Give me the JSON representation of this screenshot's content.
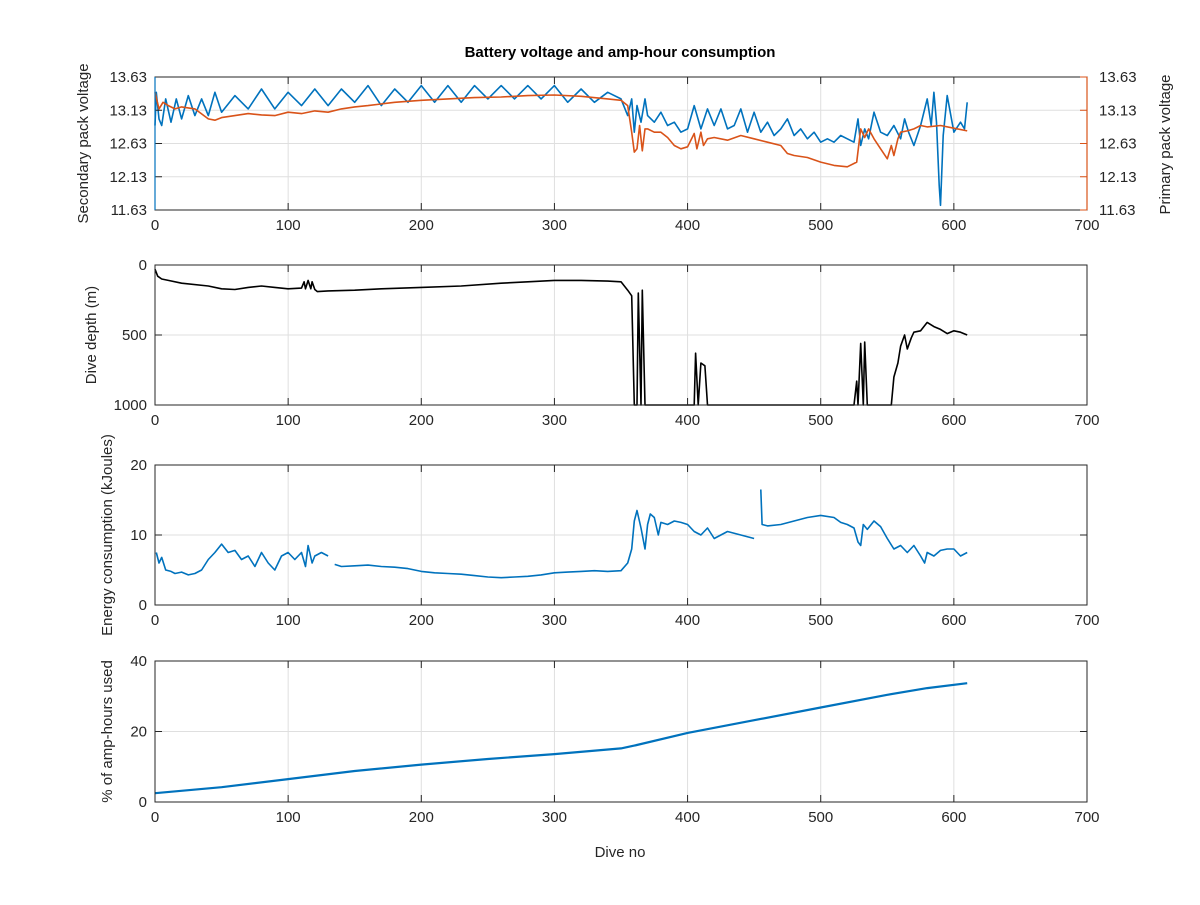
{
  "figure": {
    "title": "Battery voltage and amp-hour consumption",
    "xlabel": "Dive no"
  },
  "colors": {
    "blue": "#0072bd",
    "orange": "#d95319",
    "black": "#000000",
    "axis": "#262626"
  },
  "chart_data": [
    {
      "type": "line",
      "xlim": [
        0,
        700
      ],
      "x_ticks": [
        0,
        100,
        200,
        300,
        400,
        500,
        600,
        700
      ],
      "x_tick_labels": [
        "0",
        "100",
        "200",
        "300",
        "400",
        "500",
        "600",
        "700"
      ],
      "ylim": [
        11.63,
        13.63
      ],
      "y_ticks": [
        11.63,
        12.13,
        12.63,
        13.13,
        13.63
      ],
      "y_tick_labels": [
        "11.63",
        "12.13",
        "12.63",
        "13.13",
        "13.63"
      ],
      "ylabel": "Secondary pack voltage",
      "y2lim": [
        11.63,
        13.63
      ],
      "y2_ticks": [
        11.63,
        12.13,
        12.63,
        13.13,
        13.63
      ],
      "y2_tick_labels": [
        "11.63",
        "12.13",
        "12.63",
        "13.13",
        "13.63"
      ],
      "y2label": "Primary pack voltage",
      "grid": true,
      "series": [
        {
          "color": "blue",
          "axis": "left",
          "x": [
            0,
            1,
            3,
            5,
            8,
            12,
            16,
            20,
            25,
            30,
            35,
            40,
            45,
            50,
            60,
            70,
            80,
            90,
            100,
            110,
            120,
            130,
            140,
            150,
            160,
            170,
            180,
            190,
            200,
            210,
            220,
            230,
            240,
            250,
            260,
            270,
            280,
            290,
            300,
            310,
            320,
            330,
            340,
            350,
            355,
            358,
            360,
            362,
            365,
            368,
            370,
            375,
            380,
            385,
            390,
            395,
            400,
            405,
            410,
            415,
            420,
            425,
            430,
            435,
            440,
            445,
            450,
            455,
            460,
            465,
            470,
            475,
            480,
            485,
            490,
            495,
            500,
            505,
            510,
            515,
            520,
            525,
            528,
            530,
            533,
            536,
            540,
            545,
            550,
            555,
            560,
            563,
            566,
            570,
            575,
            580,
            583,
            585,
            587,
            589,
            590,
            592,
            595,
            600,
            605,
            608,
            610
          ],
          "y": [
            12.9,
            13.4,
            13.0,
            12.9,
            13.3,
            12.95,
            13.3,
            13.0,
            13.35,
            13.05,
            13.3,
            13.05,
            13.4,
            13.1,
            13.35,
            13.15,
            13.45,
            13.15,
            13.4,
            13.2,
            13.45,
            13.2,
            13.45,
            13.25,
            13.5,
            13.2,
            13.45,
            13.25,
            13.5,
            13.25,
            13.5,
            13.25,
            13.5,
            13.3,
            13.5,
            13.3,
            13.5,
            13.3,
            13.5,
            13.25,
            13.45,
            13.25,
            13.4,
            13.3,
            13.05,
            13.3,
            12.8,
            13.2,
            12.95,
            13.3,
            13.05,
            12.95,
            13.1,
            12.9,
            12.95,
            12.8,
            12.85,
            13.2,
            12.85,
            13.15,
            12.9,
            13.15,
            12.85,
            12.9,
            13.15,
            12.8,
            13.1,
            12.8,
            12.95,
            12.75,
            12.85,
            13.0,
            12.75,
            12.85,
            12.7,
            12.8,
            12.65,
            12.7,
            12.65,
            12.75,
            12.7,
            12.65,
            13.0,
            12.6,
            12.85,
            12.7,
            13.1,
            12.8,
            12.75,
            12.9,
            12.7,
            13.0,
            12.8,
            12.6,
            12.9,
            13.3,
            12.9,
            13.4,
            12.95,
            12.0,
            11.7,
            12.75,
            13.35,
            12.8,
            12.95,
            12.85,
            13.25
          ]
        },
        {
          "color": "orange",
          "axis": "right",
          "x": [
            0,
            3,
            6,
            10,
            15,
            20,
            30,
            40,
            45,
            50,
            60,
            70,
            80,
            90,
            100,
            110,
            120,
            130,
            140,
            150,
            160,
            180,
            200,
            220,
            240,
            260,
            280,
            300,
            320,
            340,
            350,
            355,
            358,
            360,
            362,
            364,
            366,
            368,
            370,
            375,
            380,
            385,
            390,
            395,
            400,
            405,
            407,
            410,
            412,
            415,
            420,
            430,
            440,
            450,
            460,
            470,
            475,
            480,
            490,
            500,
            510,
            520,
            527,
            530,
            533,
            536,
            540,
            545,
            550,
            553,
            555,
            558,
            560,
            565,
            570,
            575,
            580,
            590,
            600,
            610
          ],
          "y": [
            13.4,
            13.15,
            13.25,
            13.2,
            13.15,
            13.18,
            13.15,
            13.0,
            12.98,
            13.02,
            13.05,
            13.08,
            13.06,
            13.05,
            13.1,
            13.08,
            13.12,
            13.1,
            13.15,
            13.18,
            13.2,
            13.25,
            13.28,
            13.3,
            13.32,
            13.33,
            13.35,
            13.36,
            13.34,
            13.3,
            13.28,
            13.2,
            12.8,
            12.5,
            12.55,
            12.9,
            12.52,
            12.85,
            12.85,
            12.8,
            12.8,
            12.72,
            12.6,
            12.55,
            12.58,
            12.78,
            12.55,
            12.8,
            12.6,
            12.7,
            12.72,
            12.68,
            12.75,
            12.7,
            12.65,
            12.6,
            12.48,
            12.45,
            12.42,
            12.35,
            12.3,
            12.28,
            12.35,
            12.85,
            12.72,
            12.85,
            12.7,
            12.55,
            12.4,
            12.6,
            12.45,
            12.7,
            12.8,
            12.82,
            12.85,
            12.9,
            12.88,
            12.9,
            12.86,
            12.82
          ]
        }
      ]
    },
    {
      "type": "line",
      "xlim": [
        0,
        700
      ],
      "x_ticks": [
        0,
        100,
        200,
        300,
        400,
        500,
        600,
        700
      ],
      "x_tick_labels": [
        "0",
        "100",
        "200",
        "300",
        "400",
        "500",
        "600",
        "700"
      ],
      "ylim": [
        0,
        1000
      ],
      "y_reversed": true,
      "y_ticks": [
        0,
        500,
        1000
      ],
      "y_tick_labels": [
        "0",
        "500",
        "1000"
      ],
      "ylabel": "Dive depth (m)",
      "grid": true,
      "series": [
        {
          "color": "black",
          "x": [
            0,
            2,
            5,
            10,
            20,
            40,
            50,
            60,
            70,
            80,
            90,
            100,
            110,
            112,
            113,
            115,
            117,
            118,
            120,
            122,
            130,
            150,
            170,
            200,
            230,
            260,
            280,
            300,
            320,
            340,
            350,
            355,
            358,
            360,
            362,
            363,
            365,
            366,
            368,
            370,
            375,
            400,
            405,
            406,
            408,
            410,
            413,
            415,
            418,
            420,
            450,
            480,
            500,
            520,
            525,
            527,
            528,
            530,
            532,
            533,
            535,
            537,
            540,
            545,
            550,
            553,
            555,
            558,
            560,
            563,
            565,
            568,
            570,
            575,
            580,
            585,
            590,
            595,
            600,
            605,
            610
          ],
          "y": [
            30,
            80,
            100,
            110,
            130,
            150,
            170,
            175,
            160,
            150,
            160,
            170,
            165,
            120,
            170,
            110,
            170,
            120,
            175,
            190,
            185,
            180,
            170,
            160,
            150,
            130,
            120,
            110,
            110,
            115,
            120,
            180,
            220,
            1000,
            1000,
            200,
            1000,
            180,
            1000,
            1000,
            1000,
            1000,
            1000,
            630,
            1000,
            700,
            720,
            1000,
            1000,
            1000,
            1000,
            1000,
            1000,
            1000,
            1000,
            830,
            1000,
            560,
            1000,
            550,
            1000,
            1000,
            1000,
            1000,
            1000,
            1000,
            800,
            700,
            580,
            500,
            600,
            520,
            480,
            470,
            410,
            440,
            460,
            490,
            470,
            480,
            500
          ]
        }
      ]
    },
    {
      "type": "line",
      "xlim": [
        0,
        700
      ],
      "x_ticks": [
        0,
        100,
        200,
        300,
        400,
        500,
        600,
        700
      ],
      "x_tick_labels": [
        "0",
        "100",
        "200",
        "300",
        "400",
        "500",
        "600",
        "700"
      ],
      "ylim": [
        0,
        20
      ],
      "y_ticks": [
        0,
        10,
        20
      ],
      "y_tick_labels": [
        "0",
        "10",
        "20"
      ],
      "ylabel": "Energy consumption (kJoules)",
      "grid": true,
      "series": [
        {
          "color": "blue",
          "segments": [
            {
              "x": [
                1,
                3,
                5,
                8,
                12,
                15,
                20,
                25,
                30,
                35,
                40,
                45,
                50,
                55,
                60,
                65,
                70,
                75,
                80,
                85,
                90,
                95,
                100,
                105,
                110,
                113,
                115,
                118,
                120,
                125,
                130
              ],
              "y": [
                7.5,
                6.0,
                6.8,
                5.0,
                4.8,
                4.5,
                4.7,
                4.3,
                4.5,
                5.0,
                6.5,
                7.5,
                8.7,
                7.5,
                7.8,
                6.5,
                7.0,
                5.5,
                7.5,
                6.0,
                5.0,
                7.0,
                7.5,
                6.5,
                7.5,
                5.5,
                8.5,
                6.0,
                7.0,
                7.5,
                7.0
              ]
            },
            {
              "x": [
                135,
                140,
                150,
                160,
                170,
                180,
                190,
                200,
                210,
                220,
                230,
                240,
                250,
                260,
                270,
                280,
                290,
                300,
                310,
                320,
                330,
                340,
                350,
                355,
                358,
                360,
                362,
                365,
                368,
                370,
                372,
                375,
                378,
                380,
                385,
                390,
                395,
                400,
                405,
                410,
                415,
                420,
                430,
                440,
                450
              ],
              "y": [
                5.8,
                5.5,
                5.6,
                5.7,
                5.5,
                5.4,
                5.2,
                4.8,
                4.6,
                4.5,
                4.4,
                4.2,
                4.0,
                3.9,
                4.0,
                4.1,
                4.3,
                4.6,
                4.7,
                4.8,
                4.9,
                4.8,
                4.9,
                6.0,
                8.0,
                12.0,
                13.5,
                11.0,
                8.0,
                11.5,
                13.0,
                12.5,
                10.0,
                11.8,
                11.5,
                12.0,
                11.8,
                11.5,
                10.5,
                10.0,
                11.0,
                9.5,
                10.5,
                10.0,
                9.5
              ]
            },
            {
              "x": [
                455,
                456,
                460,
                470,
                480,
                490,
                500,
                510,
                515,
                520,
                525,
                528,
                530,
                532,
                535,
                540,
                545,
                550,
                555,
                560,
                565,
                570,
                575,
                578,
                580,
                585,
                590,
                595,
                600,
                605,
                610
              ],
              "y": [
                16.5,
                11.5,
                11.3,
                11.5,
                12.0,
                12.5,
                12.8,
                12.5,
                11.8,
                11.5,
                11.0,
                9.0,
                8.5,
                11.5,
                10.8,
                12.0,
                11.2,
                9.5,
                8.0,
                8.5,
                7.5,
                8.5,
                7.0,
                6.0,
                7.5,
                7.0,
                7.8,
                8.0,
                8.0,
                7.0,
                7.5
              ]
            }
          ]
        }
      ]
    },
    {
      "type": "line",
      "xlim": [
        0,
        700
      ],
      "x_ticks": [
        0,
        100,
        200,
        300,
        400,
        500,
        600,
        700
      ],
      "x_tick_labels": [
        "0",
        "100",
        "200",
        "300",
        "400",
        "500",
        "600",
        "700"
      ],
      "ylim": [
        0,
        40
      ],
      "y_ticks": [
        0,
        20,
        40
      ],
      "y_tick_labels": [
        "0",
        "20",
        "40"
      ],
      "ylabel": "% of amp-hours used",
      "xlabel": "Dive no",
      "grid": true,
      "series": [
        {
          "color": "blue",
          "x": [
            0,
            50,
            100,
            150,
            200,
            250,
            300,
            350,
            360,
            400,
            450,
            500,
            550,
            580,
            610
          ],
          "y": [
            2.5,
            4.2,
            6.5,
            8.8,
            10.6,
            12.2,
            13.6,
            15.2,
            16.0,
            19.6,
            23.2,
            26.8,
            30.4,
            32.3,
            33.7
          ]
        }
      ]
    }
  ]
}
